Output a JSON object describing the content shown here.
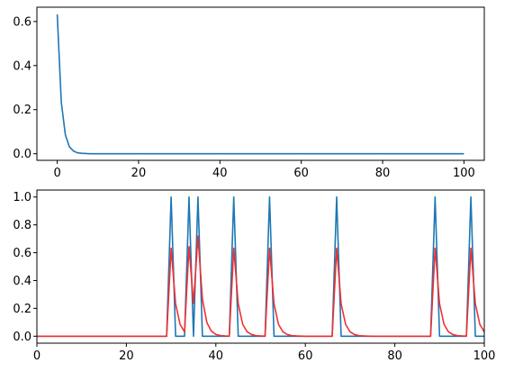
{
  "colors": {
    "blue": "#1f77b4",
    "red": "#f03030",
    "frame": "#000000",
    "background": "#ffffff"
  },
  "chart_data": [
    {
      "type": "line",
      "title": "",
      "xlabel": "",
      "ylabel": "",
      "grid": false,
      "xlim": [
        -5,
        105
      ],
      "ylim": [
        -0.03,
        0.665
      ],
      "xticks": [
        0,
        20,
        40,
        60,
        80,
        100
      ],
      "yticks": [
        0.0,
        0.2,
        0.4,
        0.6
      ],
      "xtick_labels": [
        "0",
        "20",
        "40",
        "60",
        "80",
        "100"
      ],
      "ytick_labels": [
        "0.0",
        "0.2",
        "0.4",
        "0.6"
      ],
      "series": [
        {
          "color": "#1f77b4",
          "x": [
            0,
            1,
            2,
            3,
            4,
            5,
            6,
            7,
            8,
            10,
            20,
            40,
            60,
            80,
            100
          ],
          "y": [
            0.632,
            0.233,
            0.085,
            0.031,
            0.012,
            0.004,
            0.002,
            0.001,
            0.0,
            0.0,
            0.0,
            0.0,
            0.0,
            0.0,
            0.0
          ]
        }
      ]
    },
    {
      "type": "line",
      "title": "",
      "xlabel": "",
      "ylabel": "",
      "grid": false,
      "xlim": [
        0,
        100
      ],
      "ylim": [
        -0.05,
        1.05
      ],
      "xticks": [
        0,
        20,
        40,
        60,
        80,
        100
      ],
      "yticks": [
        0.0,
        0.2,
        0.4,
        0.6,
        0.8,
        1.0
      ],
      "xtick_labels": [
        "0",
        "20",
        "40",
        "60",
        "80",
        "100"
      ],
      "ytick_labels": [
        "0.0",
        "0.2",
        "0.4",
        "0.6",
        "0.8",
        "1.0"
      ],
      "spike_times": [
        30,
        34,
        36,
        44,
        52,
        67,
        89,
        97
      ],
      "series": [
        {
          "color": "#1f77b4",
          "x": [
            0,
            29,
            30,
            31,
            33,
            34,
            35,
            36,
            37,
            43,
            44,
            45,
            51,
            52,
            53,
            66,
            67,
            68,
            88,
            89,
            90,
            96,
            97,
            98,
            100
          ],
          "y": [
            0,
            0,
            1,
            0,
            0,
            1,
            0,
            1,
            0,
            0,
            1,
            0,
            0,
            1,
            0,
            0,
            1,
            0,
            0,
            1,
            0,
            0,
            1,
            0,
            0
          ]
        },
        {
          "color": "#f03030",
          "x": [
            0,
            29,
            30,
            31,
            32,
            33,
            34,
            35,
            36,
            37,
            38,
            39,
            40,
            41,
            42,
            43,
            44,
            45,
            46,
            47,
            48,
            49,
            50,
            51,
            52,
            53,
            54,
            55,
            56,
            57,
            58,
            59,
            60,
            66,
            67,
            68,
            69,
            70,
            71,
            72,
            73,
            74,
            75,
            76,
            88,
            89,
            90,
            91,
            92,
            93,
            94,
            95,
            96,
            97,
            98,
            99,
            100
          ],
          "y": [
            0,
            0,
            0.632,
            0.233,
            0.085,
            0.031,
            0.644,
            0.237,
            0.719,
            0.265,
            0.097,
            0.036,
            0.013,
            0.005,
            0.002,
            0.001,
            0.632,
            0.233,
            0.085,
            0.031,
            0.012,
            0.004,
            0.002,
            0.001,
            0.632,
            0.233,
            0.085,
            0.031,
            0.012,
            0.004,
            0.002,
            0.001,
            0.0,
            0.0,
            0.632,
            0.233,
            0.085,
            0.031,
            0.012,
            0.004,
            0.002,
            0.001,
            0.0,
            0.0,
            0.0,
            0.632,
            0.233,
            0.085,
            0.031,
            0.012,
            0.004,
            0.002,
            0.001,
            0.632,
            0.233,
            0.085,
            0.031
          ]
        }
      ]
    }
  ]
}
